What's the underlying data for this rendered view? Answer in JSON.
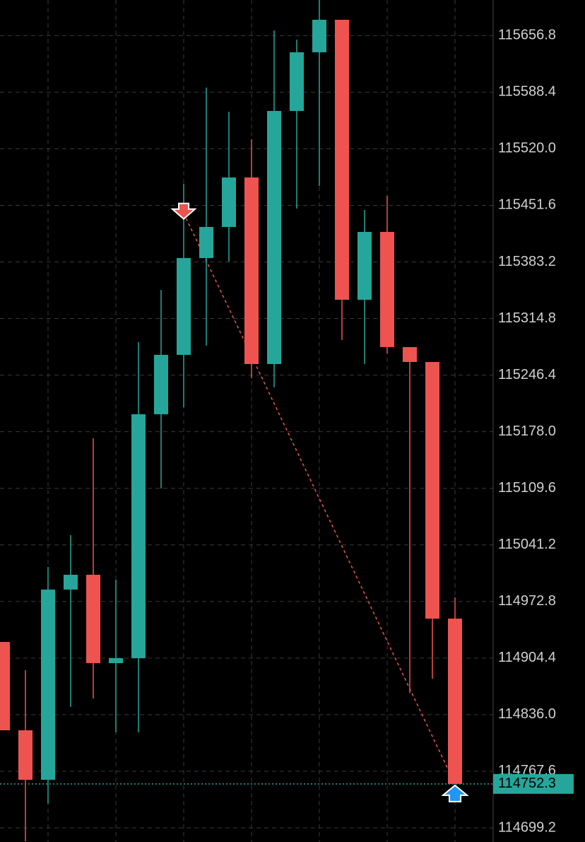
{
  "chart_data": {
    "type": "candlestick",
    "up_color": "#26a69a",
    "down_color": "#ef5350",
    "ylim": [
      114682.1,
      115699.8
    ],
    "yticks": [
      115656.8,
      115588.4,
      {
        "value": 115520.0,
        "label": "115520.0"
      },
      115451.6,
      115383.2,
      115314.8,
      115246.4,
      {
        "value": 115178.0,
        "label": "115178.0"
      },
      115109.6,
      115041.2,
      114972.8,
      114904.4,
      {
        "value": 114836.0,
        "label": "114836.0"
      },
      114767.6,
      114699.2
    ],
    "grid": true,
    "candles": [
      {
        "open": 114923.9,
        "high": 114923.9,
        "low": 114817.1,
        "close": 114817.1
      },
      {
        "open": 114817.1,
        "high": 114889.8,
        "low": 114683.0,
        "close": 114757.3
      },
      {
        "open": 114757.3,
        "high": 115014.5,
        "low": 114728.3,
        "close": 114987.2
      },
      {
        "open": 114987.2,
        "high": 115053.0,
        "low": 114845.3,
        "close": 115005.1
      },
      {
        "open": 115005.1,
        "high": 115170.0,
        "low": 114855.6,
        "close": 114898.3
      },
      {
        "open": 114898.3,
        "high": 114999.1,
        "low": 114814.6,
        "close": 114904.3
      },
      {
        "open": 114904.3,
        "high": 115286.2,
        "low": 114814.6,
        "close": 115199.1
      },
      {
        "open": 115199.1,
        "high": 115349.5,
        "low": 115109.4,
        "close": 115270.9
      },
      {
        "open": 115270.9,
        "high": 115477.7,
        "low": 115207.6,
        "close": 115387.9
      },
      {
        "open": 115387.9,
        "high": 115593.9,
        "low": 115282.0,
        "close": 115425.5
      },
      {
        "open": 115425.5,
        "high": 115564.8,
        "low": 115383.7,
        "close": 115485.3
      },
      {
        "open": 115485.3,
        "high": 115531.5,
        "low": 115242.7,
        "close": 115259.8
      },
      {
        "open": 115259.8,
        "high": 115663.1,
        "low": 115231.6,
        "close": 115565.7
      },
      {
        "open": 115565.7,
        "high": 115652.0,
        "low": 115447.7,
        "close": 115636.6
      },
      {
        "open": 115636.6,
        "high": 115699.8,
        "low": 115475.1,
        "close": 115675.9
      },
      {
        "open": 115675.9,
        "high": 115675.9,
        "low": 115288.8,
        "close": 115337.5
      },
      {
        "open": 115337.5,
        "high": 115446.0,
        "low": 115259.8,
        "close": 115419.5
      },
      {
        "open": 115419.5,
        "high": 115463.1,
        "low": 115272.6,
        "close": 115280.3
      },
      {
        "open": 115280.3,
        "high": 115280.3,
        "low": 114862.4,
        "close": 115262.3
      },
      {
        "open": 115262.3,
        "high": 115262.3,
        "low": 114879.5,
        "close": 114952.1
      },
      {
        "open": 114952.1,
        "high": 114977.8,
        "low": 114752.3,
        "close": 114752.3
      }
    ],
    "last_price": {
      "value": 114752.3,
      "label": "114752.3",
      "color": "#26a69a"
    },
    "sell_marker": {
      "index": 8,
      "value": 115442.0,
      "color": "#ef5350"
    },
    "buy_marker": {
      "index": 20,
      "value": 114752.3,
      "color": "#2196f3"
    }
  }
}
